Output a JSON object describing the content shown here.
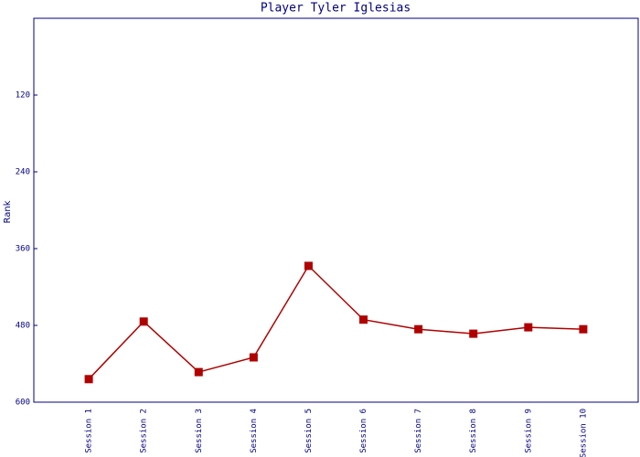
{
  "chart_data": {
    "type": "line",
    "title": "Player Tyler Iglesias",
    "y_label": "Rank",
    "categories": [
      "Session 1",
      "Session 2",
      "Session 3",
      "Session 4",
      "Session 5",
      "Session 6",
      "Session 7",
      "Session 8",
      "Session 9",
      "Session 10"
    ],
    "series": [
      {
        "name": "Rank",
        "color": "#b00000",
        "values": [
          564,
          474,
          553,
          530,
          387,
          471,
          486,
          493,
          483,
          486
        ]
      }
    ],
    "ylim": [
      600,
      0
    ],
    "yticks": [
      120,
      240,
      360,
      480,
      600
    ]
  }
}
